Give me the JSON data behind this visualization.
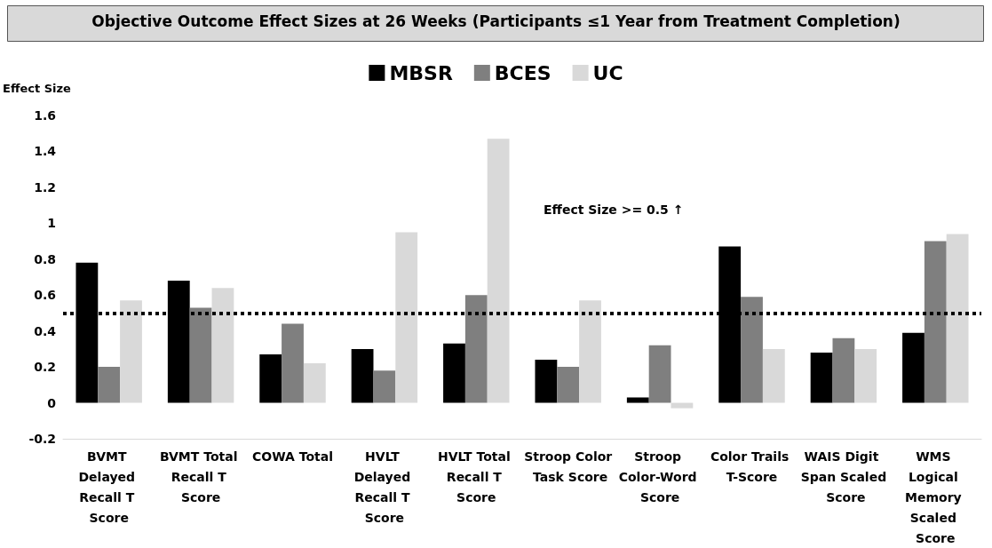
{
  "chart_data": {
    "type": "bar",
    "title": "Objective Outcome Effect Sizes at 26 Weeks (Participants ≤1 Year from Treatment Completion)",
    "ylabel": "Effect Size",
    "categories": [
      "BVMT Delayed Recall T Score",
      "BVMT Total Recall T Score",
      "COWA Total",
      "HVLT Delayed Recall T Score",
      "HVLT Total Recall T Score",
      "Stroop Color Task Score",
      "Stroop Color-Word Score",
      "Color Trails T-Score",
      "WAIS Digit Span Scaled Score",
      "WMS Logical Memory Scaled Score"
    ],
    "series": [
      {
        "name": "MBSR",
        "color": "#000000",
        "values": [
          0.78,
          0.68,
          0.27,
          0.3,
          0.33,
          0.24,
          0.03,
          0.87,
          0.28,
          0.39
        ]
      },
      {
        "name": "BCES",
        "color": "#7f7f7f",
        "values": [
          0.2,
          0.53,
          0.44,
          0.18,
          0.6,
          0.2,
          0.32,
          0.59,
          0.36,
          0.9
        ]
      },
      {
        "name": "UC",
        "color": "#d9d9d9",
        "values": [
          0.57,
          0.64,
          0.22,
          0.95,
          1.47,
          0.57,
          -0.03,
          0.3,
          0.3,
          0.94
        ]
      }
    ],
    "ylim": [
      -0.2,
      1.6
    ],
    "yticks": [
      -0.2,
      0,
      0.2,
      0.4,
      0.6,
      0.8,
      1,
      1.2,
      1.4,
      1.6
    ],
    "grid": false,
    "legend": "top",
    "ref_lines": [
      {
        "axis": "y",
        "value": 0.5,
        "color": "#000000",
        "line_style": "dotted"
      }
    ],
    "annotations": [
      "Effect Size >= 0.5 ↑"
    ]
  }
}
